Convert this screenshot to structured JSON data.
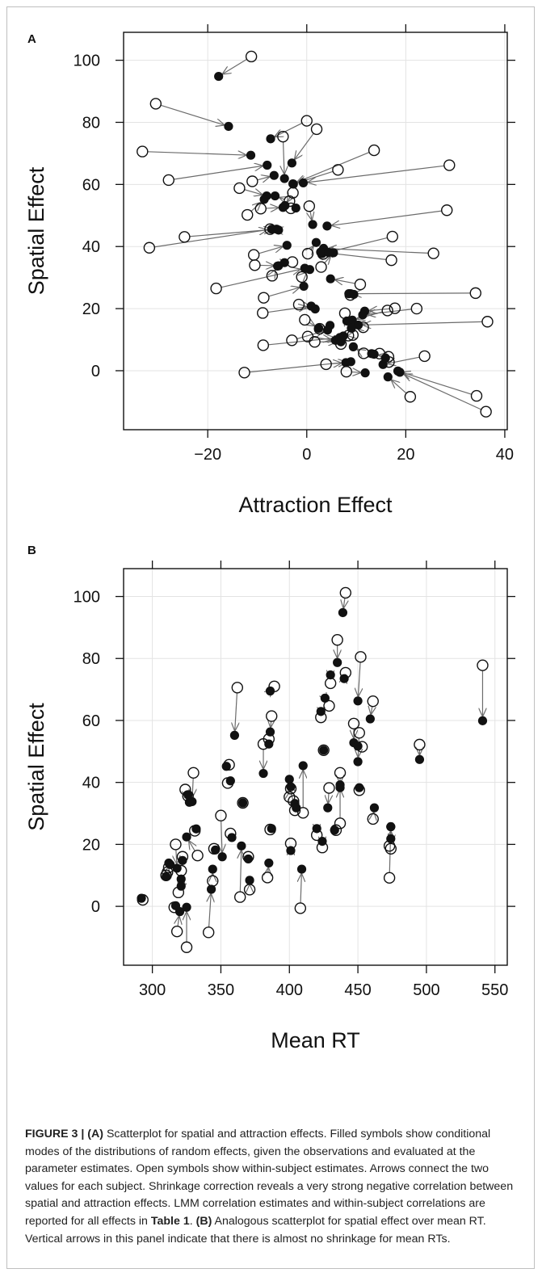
{
  "caption": {
    "figure_label": "FIGURE 3 |",
    "part_a_label": "(A)",
    "part_a_text": " Scatterplot for spatial and attraction effects. Filled symbols show conditional modes of the distributions of random effects, given the observations and evaluated at the parameter estimates. Open symbols show within-subject estimates. Arrows connect the two values for each subject. Shrinkage correction reveals a very strong negative correlation between spatial and attraction effects. LMM correlation estimates and within-subject correlations are reported for all effects in ",
    "table_ref": "Table 1",
    "part_b_sep": ". ",
    "part_b_label": "(B)",
    "part_b_text": " Analogous scatterplot for spatial effect over mean RT. Vertical arrows in this panel indicate that there is almost no shrinkage for mean RTs."
  },
  "chart_data": [
    {
      "panel": "A",
      "type": "scatter",
      "title": "",
      "xlabel": "Attraction Effect",
      "ylabel": "Spatial Effect",
      "xlim": [
        -37,
        40.5
      ],
      "ylim": [
        -19,
        109
      ],
      "xticks": [
        -20,
        0,
        20,
        40
      ],
      "yticks": [
        0,
        20,
        40,
        60,
        80,
        100
      ],
      "xtick_labels": [
        "−20",
        "0",
        "20",
        "40"
      ],
      "ytick_labels": [
        "0",
        "20",
        "40",
        "60",
        "80",
        "100"
      ],
      "grid": true,
      "legend": "none",
      "open_symbol": "within-subject estimate",
      "filled_symbol": "conditional mode",
      "arrows": [
        {
          "x0": -11.2,
          "y0": 101.2,
          "x1": -17.8,
          "y1": 94.8
        },
        {
          "x0": -30.5,
          "y0": 86.0,
          "x1": -15.8,
          "y1": 78.7
        },
        {
          "x0": 0.0,
          "y0": 80.5,
          "x1": -7.3,
          "y1": 74.7
        },
        {
          "x0": 2.0,
          "y0": 77.8,
          "x1": -3.0,
          "y1": 66.9
        },
        {
          "x0": -33.2,
          "y0": 70.6,
          "x1": -11.3,
          "y1": 69.4
        },
        {
          "x0": -4.8,
          "y0": 75.4,
          "x1": -4.5,
          "y1": 61.9
        },
        {
          "x0": 13.6,
          "y0": 71.0,
          "x1": -2.8,
          "y1": 60.2
        },
        {
          "x0": 28.8,
          "y0": 66.2,
          "x1": -0.7,
          "y1": 60.5
        },
        {
          "x0": -27.9,
          "y0": 61.4,
          "x1": -8.0,
          "y1": 66.2
        },
        {
          "x0": -11.0,
          "y0": 61.0,
          "x1": -6.6,
          "y1": 62.9
        },
        {
          "x0": 6.3,
          "y0": 64.7,
          "x1": -2.7,
          "y1": 60.1
        },
        {
          "x0": -13.6,
          "y0": 58.8,
          "x1": -8.1,
          "y1": 56.3
        },
        {
          "x0": -12.0,
          "y0": 50.2,
          "x1": -8.6,
          "y1": 55.2
        },
        {
          "x0": -9.3,
          "y0": 52.2,
          "x1": -4.8,
          "y1": 52.6
        },
        {
          "x0": -3.5,
          "y0": 54.6,
          "x1": -6.4,
          "y1": 56.3
        },
        {
          "x0": -2.8,
          "y0": 57.3,
          "x1": -4.4,
          "y1": 53.2
        },
        {
          "x0": -3.2,
          "y0": 52.3,
          "x1": -2.2,
          "y1": 52.4
        },
        {
          "x0": 0.5,
          "y0": 53.0,
          "x1": 1.2,
          "y1": 47.1
        },
        {
          "x0": 28.3,
          "y0": 51.7,
          "x1": 4.1,
          "y1": 46.6
        },
        {
          "x0": -24.7,
          "y0": 43.1,
          "x1": -6.1,
          "y1": 45.6
        },
        {
          "x0": -31.8,
          "y0": 39.6,
          "x1": -7.1,
          "y1": 45.6
        },
        {
          "x0": -7.4,
          "y0": 45.6,
          "x1": -5.7,
          "y1": 45.3
        },
        {
          "x0": 17.3,
          "y0": 43.2,
          "x1": 3.1,
          "y1": 37.7
        },
        {
          "x0": 25.6,
          "y0": 37.8,
          "x1": 3.4,
          "y1": 39.4
        },
        {
          "x0": -10.7,
          "y0": 37.3,
          "x1": -4.0,
          "y1": 40.4
        },
        {
          "x0": -10.5,
          "y0": 34.0,
          "x1": -5.7,
          "y1": 33.8
        },
        {
          "x0": 17.1,
          "y0": 35.6,
          "x1": 2.8,
          "y1": 38.2
        },
        {
          "x0": -2.9,
          "y0": 35.0,
          "x1": -4.5,
          "y1": 34.8
        },
        {
          "x0": 2.9,
          "y0": 33.4,
          "x1": 5.4,
          "y1": 38.0
        },
        {
          "x0": 3.3,
          "y0": 37.6,
          "x1": 4.4,
          "y1": 38.1
        },
        {
          "x0": 0.2,
          "y0": 37.7,
          "x1": 1.9,
          "y1": 41.3
        },
        {
          "x0": -1.0,
          "y0": 30.2,
          "x1": 0.6,
          "y1": 32.6
        },
        {
          "x0": -18.3,
          "y0": 26.5,
          "x1": -0.4,
          "y1": 33.0
        },
        {
          "x0": -7.0,
          "y0": 30.6,
          "x1": -5.9,
          "y1": 33.7
        },
        {
          "x0": 10.8,
          "y0": 27.8,
          "x1": 4.8,
          "y1": 29.6
        },
        {
          "x0": -8.7,
          "y0": 23.5,
          "x1": -0.6,
          "y1": 27.2
        },
        {
          "x0": -8.9,
          "y0": 18.6,
          "x1": 0.9,
          "y1": 20.8
        },
        {
          "x0": 34.1,
          "y0": 25.0,
          "x1": 8.5,
          "y1": 24.8
        },
        {
          "x0": 8.8,
          "y0": 24.4,
          "x1": 9.5,
          "y1": 24.6
        },
        {
          "x0": 17.8,
          "y0": 20.1,
          "x1": 11.7,
          "y1": 19.2
        },
        {
          "x0": 22.2,
          "y0": 20.0,
          "x1": 11.3,
          "y1": 18.0
        },
        {
          "x0": -1.6,
          "y0": 21.3,
          "x1": 1.7,
          "y1": 19.9
        },
        {
          "x0": 16.3,
          "y0": 19.4,
          "x1": 9.2,
          "y1": 16.3
        },
        {
          "x0": 7.7,
          "y0": 18.5,
          "x1": 8.1,
          "y1": 16.0
        },
        {
          "x0": -0.4,
          "y0": 16.4,
          "x1": 2.4,
          "y1": 13.7
        },
        {
          "x0": 36.5,
          "y0": 15.8,
          "x1": 10.4,
          "y1": 14.7
        },
        {
          "x0": 2.6,
          "y0": 13.5,
          "x1": 4.7,
          "y1": 14.6
        },
        {
          "x0": 11.4,
          "y0": 14.0,
          "x1": 9.0,
          "y1": 13.7
        },
        {
          "x0": 9.3,
          "y0": 11.5,
          "x1": 7.4,
          "y1": 11.2
        },
        {
          "x0": 8.4,
          "y0": 11.3,
          "x1": 6.6,
          "y1": 10.5
        },
        {
          "x0": 0.2,
          "y0": 11.0,
          "x1": 5.8,
          "y1": 9.8
        },
        {
          "x0": -3.0,
          "y0": 9.8,
          "x1": 4.2,
          "y1": 13.1
        },
        {
          "x0": 1.6,
          "y0": 9.3,
          "x1": 6.9,
          "y1": 9.3
        },
        {
          "x0": -8.8,
          "y0": 8.2,
          "x1": 6.7,
          "y1": 10.7
        },
        {
          "x0": 6.9,
          "y0": 8.6,
          "x1": 7.0,
          "y1": 10.0
        },
        {
          "x0": 11.5,
          "y0": 5.6,
          "x1": 9.4,
          "y1": 7.7
        },
        {
          "x0": 14.7,
          "y0": 5.5,
          "x1": 13.1,
          "y1": 5.5
        },
        {
          "x0": 16.5,
          "y0": 4.5,
          "x1": 13.6,
          "y1": 5.3
        },
        {
          "x0": 23.8,
          "y0": 4.7,
          "x1": 15.4,
          "y1": 2.0
        },
        {
          "x0": 16.6,
          "y0": 2.8,
          "x1": 15.9,
          "y1": 4.1
        },
        {
          "x0": 3.9,
          "y0": 2.1,
          "x1": 7.9,
          "y1": 2.6
        },
        {
          "x0": -12.6,
          "y0": -0.6,
          "x1": 8.9,
          "y1": 2.9
        },
        {
          "x0": 34.3,
          "y0": -8.1,
          "x1": 18.4,
          "y1": -0.1
        },
        {
          "x0": 36.2,
          "y0": -13.2,
          "x1": 18.8,
          "y1": -0.5
        },
        {
          "x0": 20.9,
          "y0": -8.4,
          "x1": 16.4,
          "y1": -2.0
        },
        {
          "x0": 8.0,
          "y0": -0.3,
          "x1": 11.8,
          "y1": -0.7
        }
      ]
    },
    {
      "panel": "B",
      "type": "scatter",
      "title": "",
      "xlabel": "Mean RT",
      "ylabel": "Spatial Effect",
      "xlim": [
        279,
        559
      ],
      "ylim": [
        -19,
        109
      ],
      "xticks": [
        300,
        350,
        400,
        450,
        500,
        550
      ],
      "yticks": [
        0,
        20,
        40,
        60,
        80,
        100
      ],
      "xtick_labels": [
        "300",
        "350",
        "400",
        "450",
        "500",
        "550"
      ],
      "ytick_labels": [
        "0",
        "20",
        "40",
        "60",
        "80",
        "100"
      ],
      "grid": true,
      "legend": "none",
      "open_symbol": "within-subject estimate",
      "filled_symbol": "conditional mode",
      "arrows": [
        {
          "x0": 441,
          "y0": 101.2,
          "x1": 439,
          "y1": 94.8
        },
        {
          "x0": 435,
          "y0": 86.0,
          "x1": 435,
          "y1": 78.7
        },
        {
          "x0": 452,
          "y0": 80.5,
          "x1": 450,
          "y1": 66.3
        },
        {
          "x0": 541,
          "y0": 77.8,
          "x1": 541,
          "y1": 59.9
        },
        {
          "x0": 441,
          "y0": 75.4,
          "x1": 440,
          "y1": 73.5
        },
        {
          "x0": 389,
          "y0": 71.0,
          "x1": 386,
          "y1": 69.5
        },
        {
          "x0": 362,
          "y0": 70.6,
          "x1": 360,
          "y1": 55.2
        },
        {
          "x0": 430,
          "y0": 72.0,
          "x1": 430,
          "y1": 74.7
        },
        {
          "x0": 461,
          "y0": 66.2,
          "x1": 459,
          "y1": 60.5
        },
        {
          "x0": 429,
          "y0": 64.7,
          "x1": 426,
          "y1": 67.2
        },
        {
          "x0": 387,
          "y0": 61.4,
          "x1": 386,
          "y1": 56.3
        },
        {
          "x0": 447,
          "y0": 59.0,
          "x1": 447,
          "y1": 52.8
        },
        {
          "x0": 451,
          "y0": 56.0,
          "x1": 450,
          "y1": 46.7
        },
        {
          "x0": 423,
          "y0": 61.0,
          "x1": 423,
          "y1": 62.9
        },
        {
          "x0": 381,
          "y0": 52.4,
          "x1": 381,
          "y1": 42.9
        },
        {
          "x0": 495,
          "y0": 52.2,
          "x1": 495,
          "y1": 47.4
        },
        {
          "x0": 385,
          "y0": 54.0,
          "x1": 385,
          "y1": 52.4
        },
        {
          "x0": 453,
          "y0": 51.5,
          "x1": 450,
          "y1": 51.7
        },
        {
          "x0": 356,
          "y0": 45.7,
          "x1": 354,
          "y1": 45.2
        },
        {
          "x0": 425,
          "y0": 50.4,
          "x1": 425,
          "y1": 50.4
        },
        {
          "x0": 330,
          "y0": 43.1,
          "x1": 329,
          "y1": 33.8
        },
        {
          "x0": 437,
          "y0": 43.1,
          "x1": 437,
          "y1": 38.3
        },
        {
          "x0": 401,
          "y0": 38.0,
          "x1": 400,
          "y1": 41.0
        },
        {
          "x0": 355,
          "y0": 39.8,
          "x1": 357,
          "y1": 40.5
        },
        {
          "x0": 400,
          "y0": 35.3,
          "x1": 401,
          "y1": 38.6
        },
        {
          "x0": 429,
          "y0": 38.2,
          "x1": 428,
          "y1": 31.8
        },
        {
          "x0": 451,
          "y0": 37.5,
          "x1": 451,
          "y1": 38.3
        },
        {
          "x0": 403,
          "y0": 34.0,
          "x1": 404,
          "y1": 33.2
        },
        {
          "x0": 404,
          "y0": 31.0,
          "x1": 405,
          "y1": 31.8
        },
        {
          "x0": 410,
          "y0": 30.2,
          "x1": 410,
          "y1": 45.4
        },
        {
          "x0": 324,
          "y0": 37.7,
          "x1": 327,
          "y1": 33.6
        },
        {
          "x0": 326,
          "y0": 35.6,
          "x1": 326,
          "y1": 36.0
        },
        {
          "x0": 350,
          "y0": 29.3,
          "x1": 351,
          "y1": 16.0
        },
        {
          "x0": 366,
          "y0": 33.4,
          "x1": 366,
          "y1": 33.4
        },
        {
          "x0": 437,
          "y0": 26.8,
          "x1": 437,
          "y1": 39.2
        },
        {
          "x0": 461,
          "y0": 28.2,
          "x1": 462,
          "y1": 31.8
        },
        {
          "x0": 420,
          "y0": 23.0,
          "x1": 420,
          "y1": 25.1
        },
        {
          "x0": 386,
          "y0": 24.8,
          "x1": 387,
          "y1": 25.1
        },
        {
          "x0": 434,
          "y0": 24.6,
          "x1": 433,
          "y1": 24.6
        },
        {
          "x0": 357,
          "y0": 23.5,
          "x1": 358,
          "y1": 22.2
        },
        {
          "x0": 331,
          "y0": 24.4,
          "x1": 332,
          "y1": 25.0
        },
        {
          "x0": 317,
          "y0": 20.0,
          "x1": 318,
          "y1": 12.3
        },
        {
          "x0": 401,
          "y0": 20.3,
          "x1": 401,
          "y1": 18.0
        },
        {
          "x0": 424,
          "y0": 19.0,
          "x1": 424,
          "y1": 21.0
        },
        {
          "x0": 474,
          "y0": 18.6,
          "x1": 474,
          "y1": 25.7
        },
        {
          "x0": 473,
          "y0": 19.5,
          "x1": 474,
          "y1": 21.8
        },
        {
          "x0": 333,
          "y0": 16.4,
          "x1": 325,
          "y1": 22.4
        },
        {
          "x0": 322,
          "y0": 16.0,
          "x1": 322,
          "y1": 14.8
        },
        {
          "x0": 370,
          "y0": 16.0,
          "x1": 370,
          "y1": 15.3
        },
        {
          "x0": 345,
          "y0": 18.6,
          "x1": 346,
          "y1": 18.2
        },
        {
          "x0": 311,
          "y0": 11.0,
          "x1": 312,
          "y1": 14.0
        },
        {
          "x0": 321,
          "y0": 11.5,
          "x1": 321,
          "y1": 8.8
        },
        {
          "x0": 319,
          "y0": 4.5,
          "x1": 321,
          "y1": 6.5
        },
        {
          "x0": 384,
          "y0": 9.3,
          "x1": 385,
          "y1": 14.0
        },
        {
          "x0": 473,
          "y0": 9.2,
          "x1": 474,
          "y1": 25.7
        },
        {
          "x0": 371,
          "y0": 5.4,
          "x1": 371,
          "y1": 8.4
        },
        {
          "x0": 344,
          "y0": 8.2,
          "x1": 344,
          "y1": 12.0
        },
        {
          "x0": 318,
          "y0": -8.1,
          "x1": 320,
          "y1": -1.7
        },
        {
          "x0": 325,
          "y0": -13.2,
          "x1": 325,
          "y1": -0.3
        },
        {
          "x0": 341,
          "y0": -8.4,
          "x1": 343,
          "y1": 5.5
        },
        {
          "x0": 364,
          "y0": 3.0,
          "x1": 365,
          "y1": 19.5
        },
        {
          "x0": 408,
          "y0": -0.6,
          "x1": 409,
          "y1": 12.0
        },
        {
          "x0": 293,
          "y0": 2.1,
          "x1": 292,
          "y1": 2.6
        },
        {
          "x0": 316,
          "y0": -0.3,
          "x1": 317,
          "y1": 0.2
        },
        {
          "x0": 310,
          "y0": 10.0,
          "x1": 310,
          "y1": 9.6
        },
        {
          "x0": 312,
          "y0": 12.6,
          "x1": 313,
          "y1": 13.5
        }
      ]
    }
  ]
}
